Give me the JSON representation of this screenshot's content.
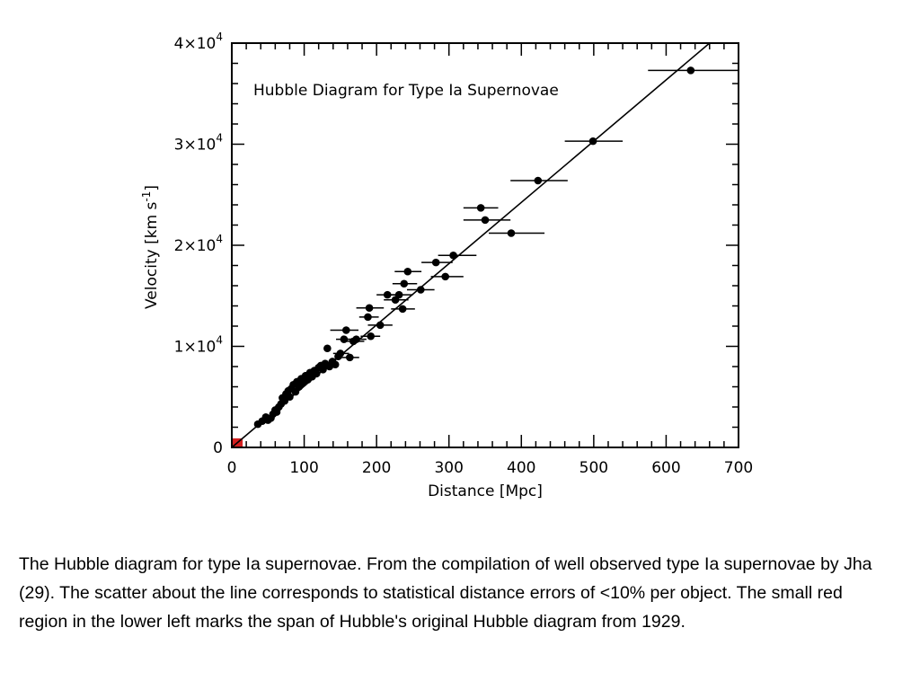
{
  "chart_data": {
    "type": "scatter",
    "title": "Hubble Diagram for Type Ia Supernovae",
    "xlabel": "Distance [Mpc]",
    "ylabel_parts": [
      "Velocity [km s",
      "-1",
      "]"
    ],
    "xlim": [
      0,
      700
    ],
    "ylim": [
      0,
      40000
    ],
    "x_ticks": [
      0,
      100,
      200,
      300,
      400,
      500,
      600,
      700
    ],
    "y_ticks": [
      {
        "value": 0,
        "mantissa": "0",
        "exp": ""
      },
      {
        "value": 10000,
        "mantissa": "1×10",
        "exp": "4"
      },
      {
        "value": 20000,
        "mantissa": "2×10",
        "exp": "4"
      },
      {
        "value": 30000,
        "mantissa": "3×10",
        "exp": "4"
      },
      {
        "value": 40000,
        "mantissa": "4×10",
        "exp": "4"
      }
    ],
    "fit_line": {
      "x": [
        0,
        660
      ],
      "y": [
        0,
        40000
      ]
    },
    "original_region": {
      "x": [
        0,
        15
      ],
      "y": [
        0,
        900
      ],
      "color": "#d42020"
    },
    "points": [
      {
        "x": 36,
        "y": 2300
      },
      {
        "x": 42,
        "y": 2600
      },
      {
        "x": 47,
        "y": 3000
      },
      {
        "x": 50,
        "y": 2700
      },
      {
        "x": 54,
        "y": 2900
      },
      {
        "x": 57,
        "y": 3300
      },
      {
        "x": 60,
        "y": 3700
      },
      {
        "x": 62,
        "y": 3500
      },
      {
        "x": 65,
        "y": 4000
      },
      {
        "x": 68,
        "y": 4300
      },
      {
        "x": 70,
        "y": 4900
      },
      {
        "x": 73,
        "y": 4600
      },
      {
        "x": 75,
        "y": 5300
      },
      {
        "x": 78,
        "y": 5600
      },
      {
        "x": 80,
        "y": 5000
      },
      {
        "x": 82,
        "y": 5800
      },
      {
        "x": 85,
        "y": 6200
      },
      {
        "x": 88,
        "y": 5500
      },
      {
        "x": 90,
        "y": 6500
      },
      {
        "x": 93,
        "y": 6000
      },
      {
        "x": 96,
        "y": 6800
      },
      {
        "x": 99,
        "y": 6400
      },
      {
        "x": 102,
        "y": 7100
      },
      {
        "x": 105,
        "y": 6700
      },
      {
        "x": 108,
        "y": 7400
      },
      {
        "x": 111,
        "y": 7000
      },
      {
        "x": 114,
        "y": 7600
      },
      {
        "x": 117,
        "y": 7300
      },
      {
        "x": 120,
        "y": 7900
      },
      {
        "x": 123,
        "y": 8100
      },
      {
        "x": 126,
        "y": 7700
      },
      {
        "x": 129,
        "y": 8300
      },
      {
        "x": 132,
        "y": 9800
      },
      {
        "x": 135,
        "y": 8000
      },
      {
        "x": 139,
        "y": 8500
      },
      {
        "x": 143,
        "y": 8200
      },
      {
        "x": 147,
        "y": 9000
      },
      {
        "x": 150,
        "y": 9300
      },
      {
        "x": 155,
        "y": 10700
      },
      {
        "x": 158,
        "y": 11600
      },
      {
        "x": 163,
        "y": 8900
      },
      {
        "x": 168,
        "y": 10500
      },
      {
        "x": 172,
        "y": 10700
      },
      {
        "x": 188,
        "y": 12900
      },
      {
        "x": 190,
        "y": 13800
      },
      {
        "x": 192,
        "y": 11000
      },
      {
        "x": 205,
        "y": 12100
      },
      {
        "x": 215,
        "y": 15100
      },
      {
        "x": 226,
        "y": 14600
      },
      {
        "x": 231,
        "y": 15100
      },
      {
        "x": 236,
        "y": 13700
      },
      {
        "x": 238,
        "y": 16200
      },
      {
        "x": 243,
        "y": 17400
      },
      {
        "x": 261,
        "y": 15600
      },
      {
        "x": 282,
        "y": 18300
      },
      {
        "x": 295,
        "y": 16900
      },
      {
        "x": 306,
        "y": 19000
      },
      {
        "x": 344,
        "y": 23700
      },
      {
        "x": 350,
        "y": 22500
      },
      {
        "x": 386,
        "y": 21200
      },
      {
        "x": 423,
        "y": 26400
      },
      {
        "x": 499,
        "y": 30300
      },
      {
        "x": 634,
        "y": 37300
      }
    ],
    "error_bars": [
      {
        "x": 150,
        "y": 9300,
        "lo": 140,
        "hi": 162
      },
      {
        "x": 155,
        "y": 10700,
        "lo": 144,
        "hi": 168
      },
      {
        "x": 158,
        "y": 11600,
        "lo": 136,
        "hi": 175
      },
      {
        "x": 163,
        "y": 8900,
        "lo": 150,
        "hi": 176
      },
      {
        "x": 168,
        "y": 10500,
        "lo": 155,
        "hi": 183
      },
      {
        "x": 172,
        "y": 10700,
        "lo": 160,
        "hi": 186
      },
      {
        "x": 188,
        "y": 12900,
        "lo": 176,
        "hi": 203
      },
      {
        "x": 190,
        "y": 13800,
        "lo": 172,
        "hi": 210
      },
      {
        "x": 192,
        "y": 11000,
        "lo": 178,
        "hi": 205
      },
      {
        "x": 205,
        "y": 12100,
        "lo": 188,
        "hi": 222
      },
      {
        "x": 215,
        "y": 15100,
        "lo": 200,
        "hi": 232
      },
      {
        "x": 226,
        "y": 14600,
        "lo": 210,
        "hi": 244
      },
      {
        "x": 231,
        "y": 15100,
        "lo": 214,
        "hi": 250
      },
      {
        "x": 236,
        "y": 13700,
        "lo": 220,
        "hi": 253
      },
      {
        "x": 238,
        "y": 16200,
        "lo": 222,
        "hi": 256
      },
      {
        "x": 243,
        "y": 17400,
        "lo": 225,
        "hi": 262
      },
      {
        "x": 261,
        "y": 15600,
        "lo": 242,
        "hi": 280
      },
      {
        "x": 282,
        "y": 18300,
        "lo": 262,
        "hi": 305
      },
      {
        "x": 295,
        "y": 16900,
        "lo": 275,
        "hi": 320
      },
      {
        "x": 306,
        "y": 19000,
        "lo": 285,
        "hi": 338
      },
      {
        "x": 344,
        "y": 23700,
        "lo": 320,
        "hi": 368
      },
      {
        "x": 350,
        "y": 22500,
        "lo": 320,
        "hi": 385
      },
      {
        "x": 386,
        "y": 21200,
        "lo": 355,
        "hi": 432
      },
      {
        "x": 423,
        "y": 26400,
        "lo": 385,
        "hi": 464
      },
      {
        "x": 499,
        "y": 30300,
        "lo": 460,
        "hi": 540
      },
      {
        "x": 634,
        "y": 37300,
        "lo": 575,
        "hi": 700
      }
    ]
  },
  "caption": {
    "text": "The Hubble diagram for type Ia supernovae. From the compilation of well observed type Ia supernovae by Jha (29). The scatter about the line corresponds to statistical distance errors of <10% per object. The small red region in the lower left marks the span of Hubble's original Hubble diagram from 1929."
  }
}
